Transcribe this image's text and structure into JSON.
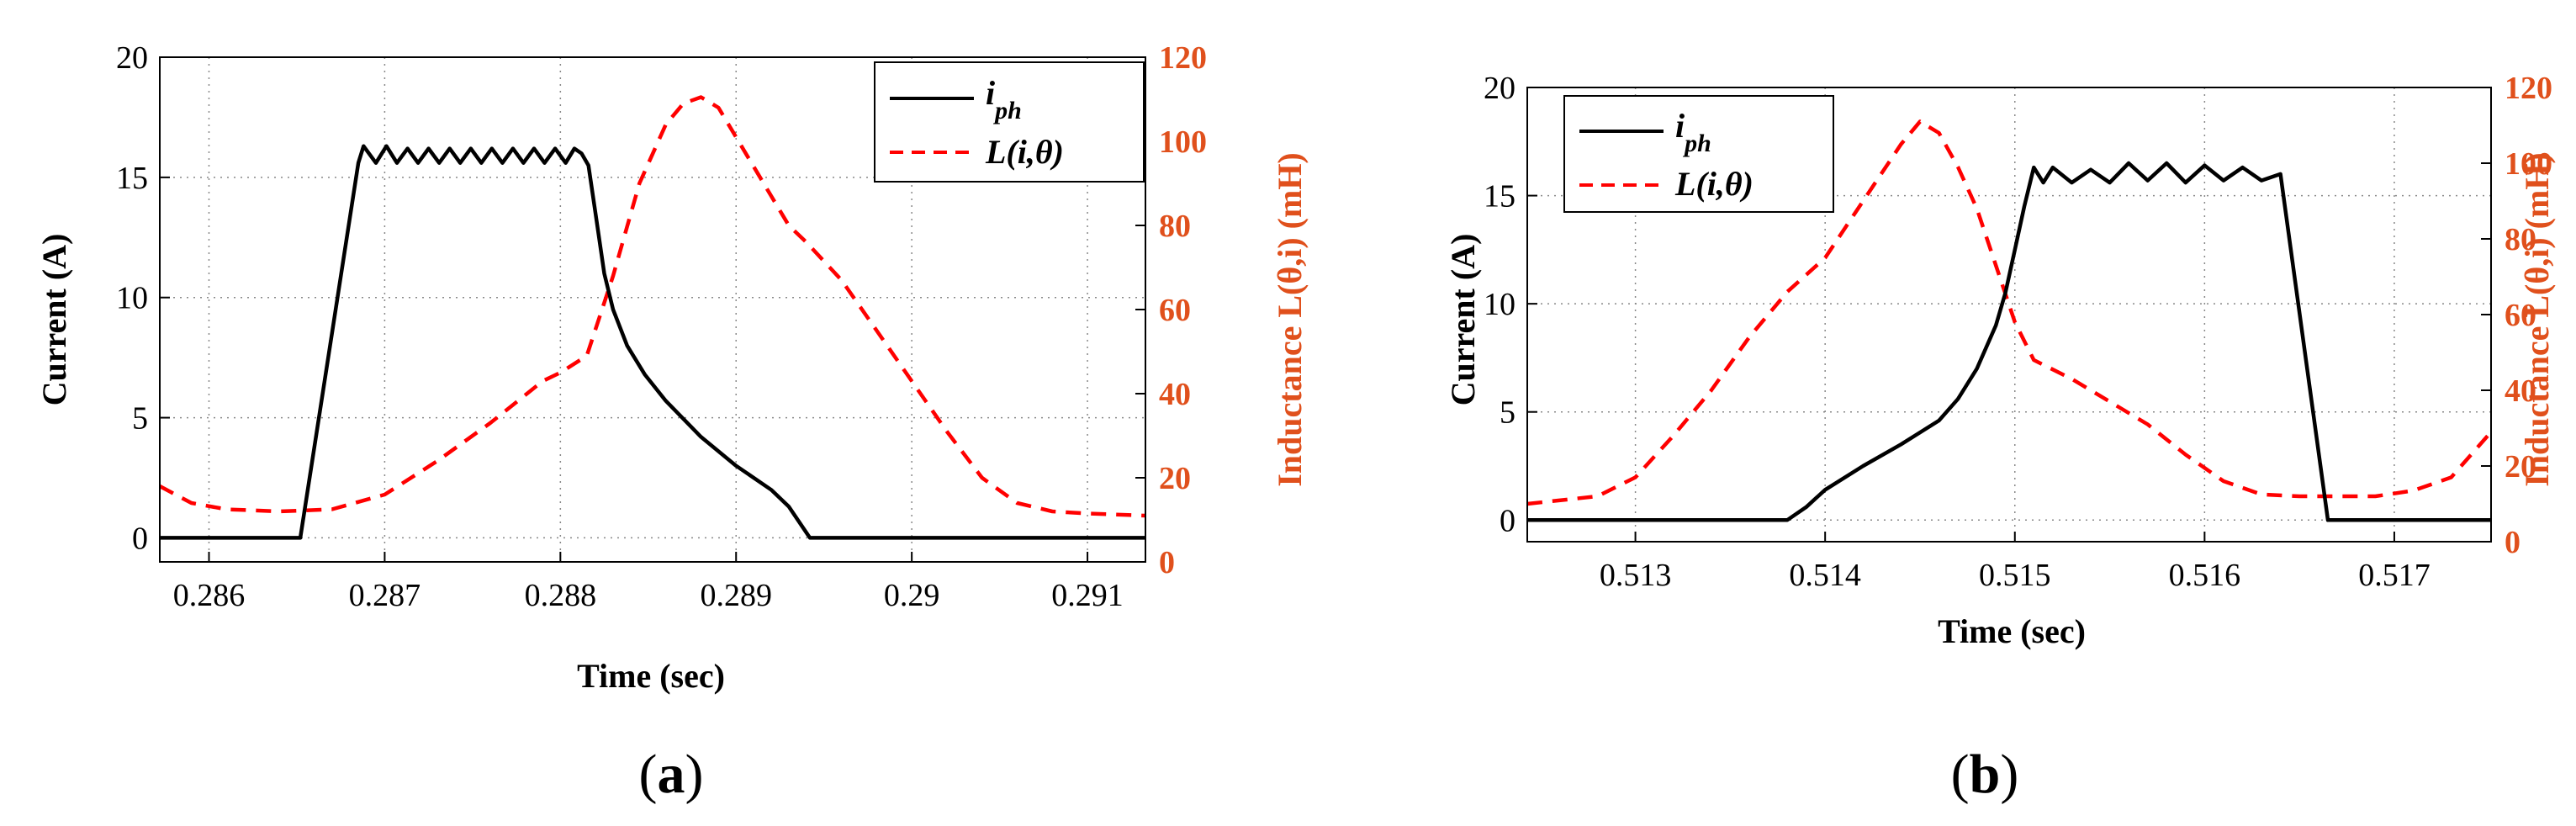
{
  "colors": {
    "current": "#000000",
    "inductance": "#ff0000",
    "right_axis": "#e0501c",
    "grid": "#888888"
  },
  "chart_data": [
    {
      "type": "line",
      "panel": "a",
      "panel_label_prefix": "(",
      "panel_label_letter": "a",
      "panel_label_suffix": ")",
      "xlabel": "Time (sec)",
      "ylabel_left": "Current (A)",
      "ylabel_right": "Inductance L(θ,i) (mH)",
      "xlim": [
        0.28572,
        0.29133
      ],
      "ylim_left": [
        -1,
        20
      ],
      "ylim_right": [
        0,
        120
      ],
      "x_ticks": [
        0.286,
        0.287,
        0.288,
        0.289,
        0.29,
        0.291
      ],
      "x_tick_labels": [
        "0.286",
        "0.287",
        "0.288",
        "0.289",
        "0.29",
        "0.291"
      ],
      "y_left_ticks": [
        0,
        5,
        10,
        15,
        20
      ],
      "y_left_tick_labels": [
        "0",
        "5",
        "10",
        "15",
        "20"
      ],
      "y_right_ticks": [
        0,
        20,
        40,
        60,
        80,
        100,
        120
      ],
      "y_right_tick_labels": [
        "0",
        "20",
        "40",
        "60",
        "80",
        "100",
        "120"
      ],
      "legend": {
        "position": "top-right",
        "entries": [
          "i_ph",
          "L(i,θ)"
        ]
      },
      "series": [
        {
          "name": "i_ph",
          "axis": "left",
          "style": "solid",
          "x": [
            0.28572,
            0.28652,
            0.28685,
            0.28688,
            0.28695,
            0.28701,
            0.28707,
            0.28713,
            0.28719,
            0.28725,
            0.28731,
            0.28737,
            0.28743,
            0.28749,
            0.28755,
            0.28761,
            0.28767,
            0.28773,
            0.28779,
            0.28785,
            0.28791,
            0.28797,
            0.28803,
            0.28808,
            0.28812,
            0.28816,
            0.2882,
            0.28825,
            0.2883,
            0.28838,
            0.28848,
            0.2886,
            0.2888,
            0.289,
            0.2892,
            0.2893,
            0.28942,
            0.29133
          ],
          "y": [
            0,
            0,
            15.6,
            16.3,
            15.6,
            16.3,
            15.6,
            16.2,
            15.6,
            16.2,
            15.6,
            16.2,
            15.6,
            16.2,
            15.6,
            16.2,
            15.6,
            16.2,
            15.6,
            16.2,
            15.6,
            16.2,
            15.6,
            16.2,
            16.0,
            15.5,
            13.5,
            11.0,
            9.5,
            8.0,
            6.8,
            5.7,
            4.2,
            3.0,
            2.0,
            1.3,
            0.0,
            0.0
          ]
        },
        {
          "name": "L(i,θ)",
          "axis": "right",
          "style": "dashed",
          "x": [
            0.28572,
            0.2859,
            0.2861,
            0.2864,
            0.2867,
            0.287,
            0.2873,
            0.2876,
            0.2879,
            0.288,
            0.28815,
            0.2883,
            0.28845,
            0.2886,
            0.2887,
            0.2888,
            0.2889,
            0.289,
            0.2891,
            0.2892,
            0.2893,
            0.2894,
            0.2896,
            0.2898,
            0.29,
            0.2902,
            0.2904,
            0.2906,
            0.2908,
            0.291,
            0.29133
          ],
          "y": [
            18,
            14,
            12.5,
            12,
            12.5,
            16,
            24,
            33,
            43,
            45,
            49,
            68,
            90,
            104,
            109,
            110.5,
            108,
            101,
            94,
            87,
            80,
            76,
            67,
            55,
            43,
            31,
            20,
            14,
            12,
            11.5,
            11
          ]
        }
      ]
    },
    {
      "type": "line",
      "panel": "b",
      "panel_label_prefix": "(",
      "panel_label_letter": "b",
      "panel_label_suffix": ")",
      "xlabel": "Time (sec)",
      "ylabel_left": "Current (A)",
      "ylabel_right": "Inductance L(θ,i) (mH)",
      "xlim": [
        0.51243,
        0.51751
      ],
      "ylim_left": [
        -1,
        20
      ],
      "ylim_right": [
        0,
        120
      ],
      "x_ticks": [
        0.513,
        0.514,
        0.515,
        0.516,
        0.517
      ],
      "x_tick_labels": [
        "0.513",
        "0.514",
        "0.515",
        "0.516",
        "0.517"
      ],
      "y_left_ticks": [
        0,
        5,
        10,
        15,
        20
      ],
      "y_left_tick_labels": [
        "0",
        "5",
        "10",
        "15",
        "20"
      ],
      "y_right_ticks": [
        0,
        20,
        40,
        60,
        80,
        100,
        120
      ],
      "y_right_tick_labels": [
        "0",
        "20",
        "40",
        "60",
        "80",
        "100",
        "120"
      ],
      "legend": {
        "position": "top-left",
        "entries": [
          "i_ph",
          "L(i,θ)"
        ]
      },
      "series": [
        {
          "name": "i_ph",
          "axis": "left",
          "style": "solid",
          "x": [
            0.51243,
            0.5138,
            0.5139,
            0.514,
            0.5142,
            0.5144,
            0.5146,
            0.5147,
            0.5148,
            0.5149,
            0.51495,
            0.515,
            0.51505,
            0.5151,
            0.51515,
            0.5152,
            0.5153,
            0.5154,
            0.5155,
            0.5156,
            0.5157,
            0.5158,
            0.5159,
            0.516,
            0.5161,
            0.5162,
            0.5163,
            0.5164,
            0.51665,
            0.51751
          ],
          "y": [
            0,
            0,
            0.6,
            1.4,
            2.5,
            3.5,
            4.6,
            5.6,
            7.0,
            9.0,
            10.5,
            12.5,
            14.5,
            16.3,
            15.6,
            16.3,
            15.6,
            16.2,
            15.6,
            16.5,
            15.7,
            16.5,
            15.6,
            16.4,
            15.7,
            16.3,
            15.7,
            16.0,
            0.0,
            0.0
          ]
        },
        {
          "name": "L(i,θ)",
          "axis": "right",
          "style": "dashed",
          "x": [
            0.51243,
            0.5128,
            0.513,
            0.5132,
            0.5134,
            0.5136,
            0.5138,
            0.514,
            0.5142,
            0.5144,
            0.5145,
            0.5146,
            0.5147,
            0.5148,
            0.5149,
            0.515,
            0.5151,
            0.5153,
            0.5155,
            0.5157,
            0.5159,
            0.5161,
            0.5163,
            0.5165,
            0.5167,
            0.5169,
            0.5171,
            0.5173,
            0.51751
          ],
          "y": [
            10,
            12,
            17,
            28,
            40,
            54,
            66,
            75,
            90,
            105,
            111,
            108,
            99,
            88,
            73,
            58,
            48,
            43,
            37,
            31,
            23,
            16,
            12.5,
            12,
            12,
            12,
            13.5,
            17,
            29
          ]
        }
      ]
    }
  ]
}
